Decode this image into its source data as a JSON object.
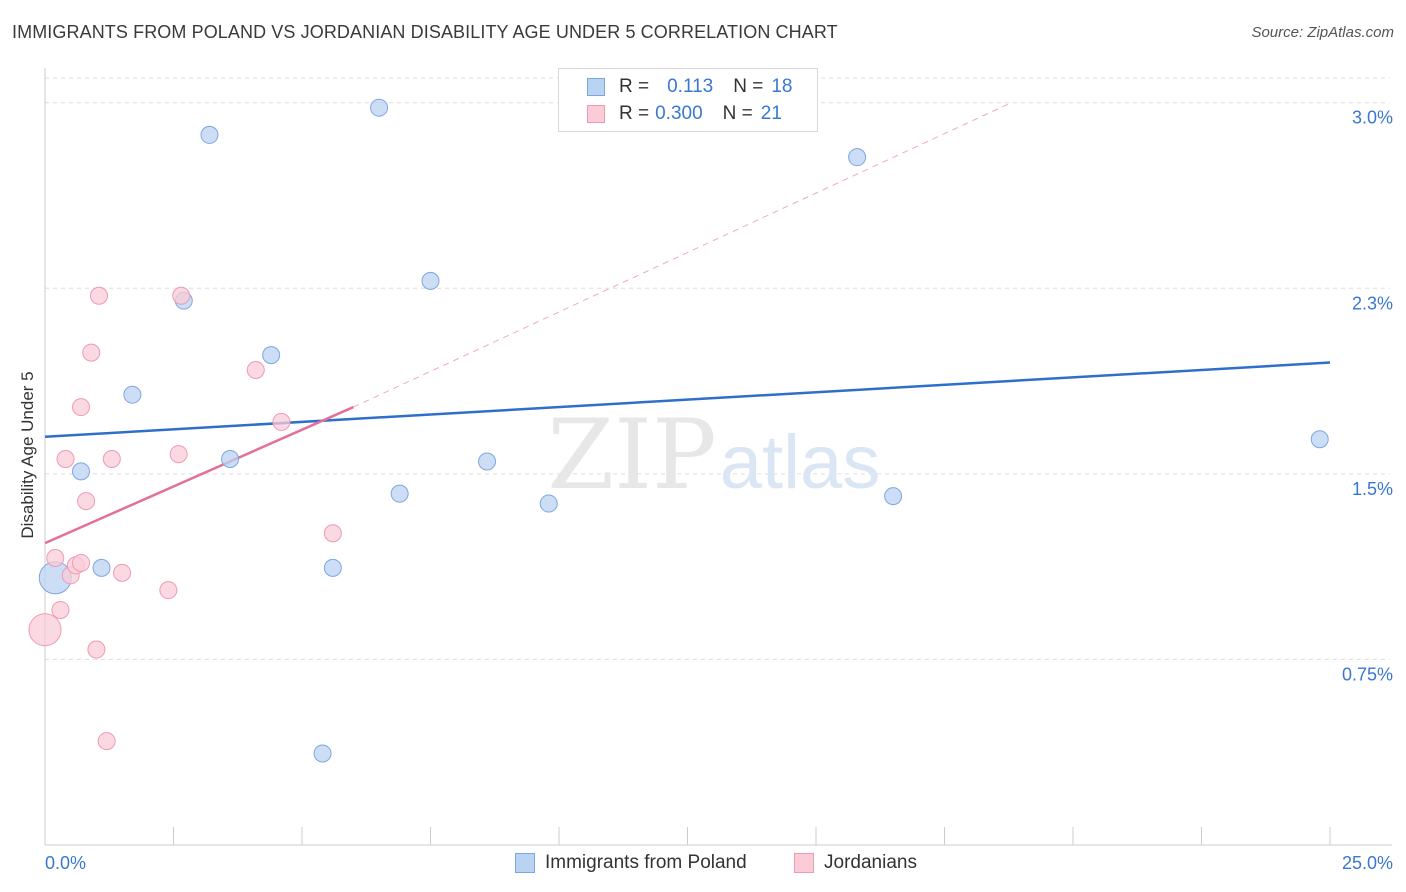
{
  "header": {
    "title": "IMMIGRANTS FROM POLAND VS JORDANIAN DISABILITY AGE UNDER 5 CORRELATION CHART",
    "source": "Source: ZipAtlas.com"
  },
  "watermark": {
    "zip": "ZIP",
    "atlas": "atlas"
  },
  "legend": {
    "rows": [
      {
        "r_label": "R =",
        "r_value": "0.113",
        "n_label": "N =",
        "n_value": "18",
        "color": "#b9d3f3",
        "border": "#7fa6de"
      },
      {
        "r_label": "R =",
        "r_value": "0.300",
        "n_label": "N =",
        "n_value": "21",
        "color": "#f9ccd8",
        "border": "#ee9ab2"
      }
    ]
  },
  "bottom_legend": [
    {
      "label": "Immigrants from Poland",
      "color": "#b9d3f3",
      "border": "#7fa6de"
    },
    {
      "label": "Jordanians",
      "color": "#f9ccd8",
      "border": "#ee9ab2"
    }
  ],
  "chart_data": {
    "type": "scatter",
    "title": "IMMIGRANTS FROM POLAND VS JORDANIAN DISABILITY AGE UNDER 5 CORRELATION CHART",
    "ylabel": "Disability Age Under 5",
    "xlim": [
      0,
      25
    ],
    "ylim": [
      0,
      3.1
    ],
    "x_tick_labels": [
      "0.0%",
      "25.0%"
    ],
    "y_ticks": [
      0.75,
      1.5,
      2.25,
      3.0
    ],
    "y_tick_labels": [
      "0.75%",
      "1.5%",
      "2.3%",
      "3.0%"
    ],
    "grid": true,
    "series": [
      {
        "name": "Immigrants from Poland",
        "color": "#7fa6de",
        "fill": "#b9d3f3",
        "trend": {
          "x": [
            0,
            25
          ],
          "y": [
            1.65,
            1.95
          ],
          "style": "solid",
          "color": "#2f6fcc"
        },
        "points": [
          {
            "x": 0.2,
            "y": 1.08,
            "big": true
          },
          {
            "x": 0.7,
            "y": 1.51
          },
          {
            "x": 1.1,
            "y": 1.12
          },
          {
            "x": 1.7,
            "y": 1.82
          },
          {
            "x": 2.7,
            "y": 2.2
          },
          {
            "x": 3.2,
            "y": 2.87
          },
          {
            "x": 3.6,
            "y": 1.56
          },
          {
            "x": 4.4,
            "y": 1.98
          },
          {
            "x": 5.4,
            "y": 0.37
          },
          {
            "x": 5.6,
            "y": 1.12
          },
          {
            "x": 6.5,
            "y": 2.98
          },
          {
            "x": 6.9,
            "y": 1.42
          },
          {
            "x": 7.5,
            "y": 2.28
          },
          {
            "x": 8.6,
            "y": 1.55
          },
          {
            "x": 9.8,
            "y": 1.38
          },
          {
            "x": 15.8,
            "y": 2.78
          },
          {
            "x": 16.5,
            "y": 1.41
          },
          {
            "x": 24.8,
            "y": 1.64
          }
        ]
      },
      {
        "name": "Jordanians",
        "color": "#ee9ab2",
        "fill": "#f9ccd8",
        "trend": {
          "x": [
            0,
            6.0
          ],
          "y": [
            1.22,
            1.77
          ],
          "style": "solid",
          "color": "#e3709a",
          "extend": {
            "x": [
              6.0,
              18.8
            ],
            "y": [
              1.77,
              3.0
            ],
            "style": "dashed"
          }
        },
        "points": [
          {
            "x": 0.0,
            "y": 0.87,
            "big": true
          },
          {
            "x": 0.2,
            "y": 1.16
          },
          {
            "x": 0.3,
            "y": 0.95
          },
          {
            "x": 0.4,
            "y": 1.56
          },
          {
            "x": 0.5,
            "y": 1.09
          },
          {
            "x": 0.6,
            "y": 1.13
          },
          {
            "x": 0.7,
            "y": 1.14
          },
          {
            "x": 0.7,
            "y": 1.77
          },
          {
            "x": 0.8,
            "y": 1.39
          },
          {
            "x": 0.9,
            "y": 1.99
          },
          {
            "x": 1.0,
            "y": 0.79
          },
          {
            "x": 1.05,
            "y": 2.22
          },
          {
            "x": 1.2,
            "y": 0.42
          },
          {
            "x": 1.3,
            "y": 1.56
          },
          {
            "x": 1.5,
            "y": 1.1
          },
          {
            "x": 2.4,
            "y": 1.03
          },
          {
            "x": 2.6,
            "y": 1.58
          },
          {
            "x": 2.65,
            "y": 2.22
          },
          {
            "x": 4.1,
            "y": 1.92
          },
          {
            "x": 4.6,
            "y": 1.71
          },
          {
            "x": 5.6,
            "y": 1.26
          }
        ]
      }
    ]
  }
}
